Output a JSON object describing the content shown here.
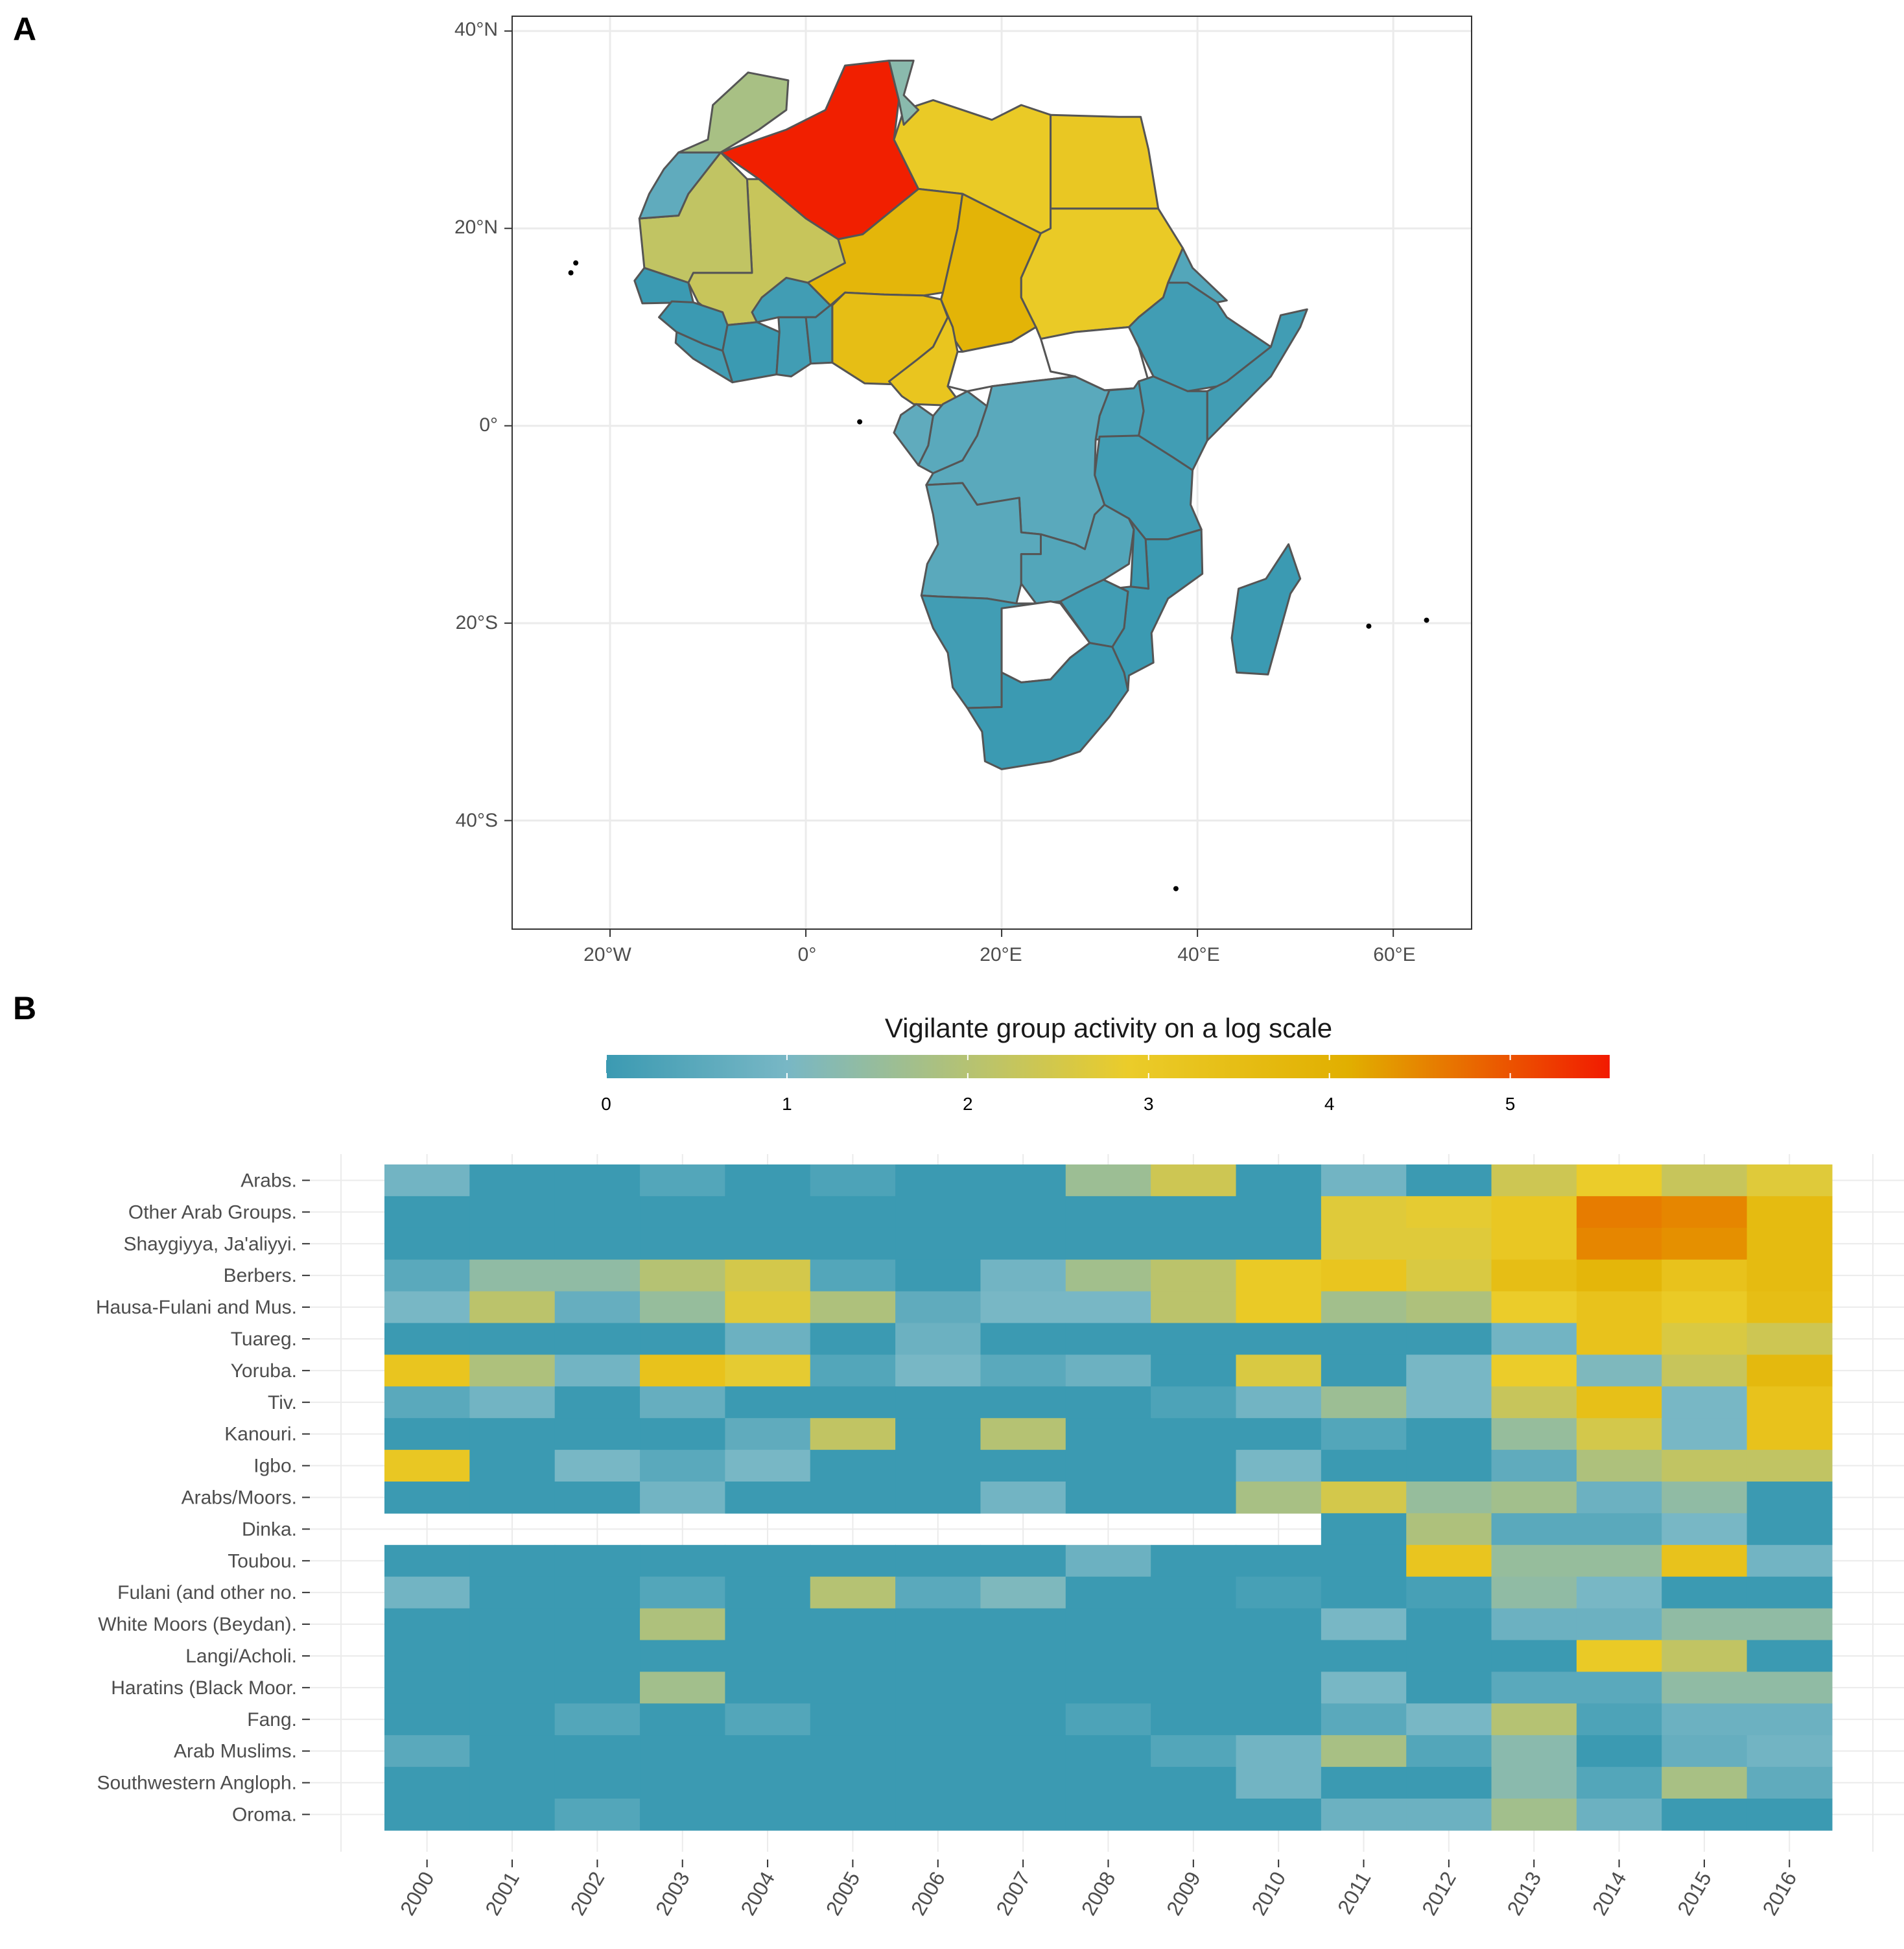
{
  "panels": {
    "a": "A",
    "b": "B"
  },
  "colors": {
    "scale": [
      "#3b9ab2",
      "#78b7c5",
      "#ebcc2a",
      "#e1af00",
      "#f21a00"
    ],
    "na": "#ffffff",
    "country_border": "#000000",
    "region_border": "#555555",
    "grid": "#ebebeb"
  },
  "map": {
    "type": "choropleth",
    "lat_labels": [
      "40°N",
      "20°N",
      "0°",
      "20°S",
      "40°S"
    ],
    "lat_values": [
      40,
      20,
      0,
      -20,
      -40
    ],
    "lon_labels": [
      "20°W",
      "0°",
      "20°E",
      "40°E",
      "60°E"
    ],
    "lon_values": [
      -20,
      0,
      20,
      40,
      60
    ],
    "xlim": [
      -30,
      68
    ],
    "ylim": [
      -51,
      41.5
    ],
    "region_values": [
      {
        "region": "Algeria",
        "value": 5.5
      },
      {
        "region": "Libya",
        "value": 3.0
      },
      {
        "region": "Niger",
        "value": 3.8
      },
      {
        "region": "Chad",
        "value": 3.9
      },
      {
        "region": "Mali",
        "value": 2.3
      },
      {
        "region": "Mauritania",
        "value": 2.2
      },
      {
        "region": "Morocco",
        "value": 1.8
      },
      {
        "region": "Western Sahara",
        "value": 0.6
      },
      {
        "region": "Nigeria",
        "value": 3.5
      },
      {
        "region": "Cameroon",
        "value": 3.2
      },
      {
        "region": "Sudan",
        "value": 3.0
      },
      {
        "region": "Egypt",
        "value": 3.1
      },
      {
        "region": "Ethiopia",
        "value": 0.1
      },
      {
        "region": "Somalia",
        "value": 0.1
      },
      {
        "region": "Kenya",
        "value": 0.1
      },
      {
        "region": "DR Congo",
        "value": 0.5
      },
      {
        "region": "Angola",
        "value": 0.5
      },
      {
        "region": "Zambia",
        "value": 0.4
      },
      {
        "region": "Tanzania",
        "value": 0.1
      },
      {
        "region": "South Africa",
        "value": 0.0
      },
      {
        "region": "Madagascar",
        "value": 0.0
      }
    ]
  },
  "chart_data": {
    "type": "heatmap",
    "legend": {
      "title": "Vigilante group activity on a log scale",
      "ticks": [
        "0",
        "1",
        "2",
        "3",
        "4",
        "5"
      ],
      "tick_values": [
        0,
        1,
        2,
        3,
        4,
        5
      ],
      "range": [
        0,
        5.55
      ],
      "placement": "top"
    },
    "years": [
      "2000",
      "2001",
      "2002",
      "2003",
      "2004",
      "2005",
      "2006",
      "2007",
      "2008",
      "2009",
      "2010",
      "2011",
      "2012",
      "2013",
      "2014",
      "2015",
      "2016"
    ],
    "groups": [
      "Arabs.",
      "Other Arab Groups.",
      "Shaygiyya, Ja'aliyyi.",
      "Berbers.",
      "Hausa-Fulani and Mus.",
      "Tuareg.",
      "Yoruba.",
      "Tiv.",
      "Kanouri.",
      "Igbo.",
      "Arabs/Moors.",
      "Dinka.",
      "Toubou.",
      "Fulani (and other no.",
      "White Moors (Beydan).",
      "Langi/Acholi.",
      "Haratins (Black Moor.",
      "Fang.",
      "Arab Muslims.",
      "Southwestern Angloph.",
      "Oroma."
    ],
    "values": [
      [
        0.9,
        0,
        0,
        0.4,
        0,
        0.3,
        0,
        0,
        1.6,
        2.4,
        0,
        0.9,
        0,
        2.4,
        2.9,
        2.3,
        2.7
      ],
      [
        0,
        0,
        0,
        0,
        0,
        0,
        0,
        0,
        0,
        0,
        0,
        2.7,
        2.8,
        3.1,
        4.6,
        4.5,
        3.6
      ],
      [
        0,
        0,
        0,
        0,
        0,
        0,
        0,
        0,
        0,
        0,
        0,
        2.7,
        2.7,
        3.1,
        4.5,
        4.4,
        3.6
      ],
      [
        0.5,
        1.4,
        1.4,
        2.0,
        2.5,
        0.4,
        0,
        0.9,
        1.7,
        2.1,
        3.0,
        3.2,
        2.6,
        3.5,
        3.8,
        3.3,
        3.6
      ],
      [
        1.0,
        2.1,
        0.7,
        1.5,
        2.7,
        1.9,
        0.6,
        1.0,
        1.0,
        2.1,
        3.0,
        1.7,
        1.9,
        2.9,
        3.3,
        3.0,
        3.5
      ],
      [
        0,
        0,
        0,
        0,
        0.8,
        0,
        0.8,
        0,
        0,
        0,
        0,
        0,
        0,
        0.9,
        3.3,
        2.6,
        2.4
      ],
      [
        3.2,
        1.9,
        0.9,
        3.3,
        2.8,
        0.4,
        1.0,
        0.5,
        0.8,
        0,
        2.6,
        0,
        1.0,
        2.9,
        1.1,
        2.3,
        3.7
      ],
      [
        0.5,
        0.9,
        0,
        0.7,
        0,
        0,
        0,
        0,
        0,
        0.3,
        0.9,
        1.6,
        1.0,
        2.3,
        3.4,
        1.0,
        3.3
      ],
      [
        0,
        0,
        0,
        0,
        0.6,
        2.2,
        0,
        2.0,
        0,
        0,
        0,
        0.4,
        0,
        1.5,
        2.5,
        1.0,
        3.3
      ],
      [
        3.1,
        0,
        1.0,
        0.5,
        1.0,
        0,
        0,
        0,
        0,
        0,
        1.0,
        0,
        0,
        0.6,
        1.9,
        2.2,
        2.2
      ],
      [
        0,
        0,
        0,
        0.9,
        0,
        0,
        0,
        0.9,
        0,
        0,
        1.8,
        2.5,
        1.5,
        1.7,
        0.8,
        1.4,
        0
      ],
      [
        null,
        null,
        null,
        null,
        null,
        null,
        null,
        null,
        null,
        null,
        null,
        0,
        1.9,
        0.5,
        0.5,
        1.0,
        0
      ],
      [
        0,
        0,
        0,
        0,
        0,
        0,
        0,
        0,
        0.8,
        0,
        0,
        0,
        3.2,
        1.5,
        1.5,
        3.3,
        0.9
      ],
      [
        0.9,
        0,
        0,
        0.4,
        0,
        2.0,
        0.5,
        1.1,
        0,
        0,
        0.2,
        0,
        0.2,
        1.4,
        1.0,
        0,
        0
      ],
      [
        0,
        0,
        0,
        1.9,
        0,
        0,
        0,
        0,
        0,
        0,
        0,
        1.0,
        0,
        0.8,
        0.8,
        1.4,
        1.4
      ],
      [
        0,
        0,
        0,
        0,
        0,
        0,
        0,
        0,
        0,
        0,
        0,
        0,
        0,
        0,
        3.0,
        2.2,
        0
      ],
      [
        0,
        0,
        0,
        1.7,
        0,
        0,
        0,
        0,
        0,
        0,
        0,
        1.0,
        0,
        0.5,
        0.5,
        1.4,
        1.4
      ],
      [
        0,
        0,
        0.4,
        0,
        0.4,
        0,
        0,
        0,
        0.3,
        0,
        0,
        0.5,
        1.0,
        2.0,
        0.3,
        0.8,
        0.8
      ],
      [
        0.5,
        0,
        0,
        0,
        0,
        0,
        0,
        0,
        0,
        0.4,
        0.9,
        1.8,
        0.4,
        1.3,
        0,
        0.7,
        0.9
      ],
      [
        0,
        0,
        0,
        0,
        0,
        0,
        0,
        0,
        0,
        0,
        0.9,
        0,
        0,
        1.3,
        0.4,
        1.8,
        0.6
      ],
      [
        0,
        0,
        0.4,
        0,
        0,
        0,
        0,
        0,
        0,
        0,
        0,
        0.8,
        0.8,
        1.7,
        0.8,
        0,
        0
      ]
    ]
  }
}
